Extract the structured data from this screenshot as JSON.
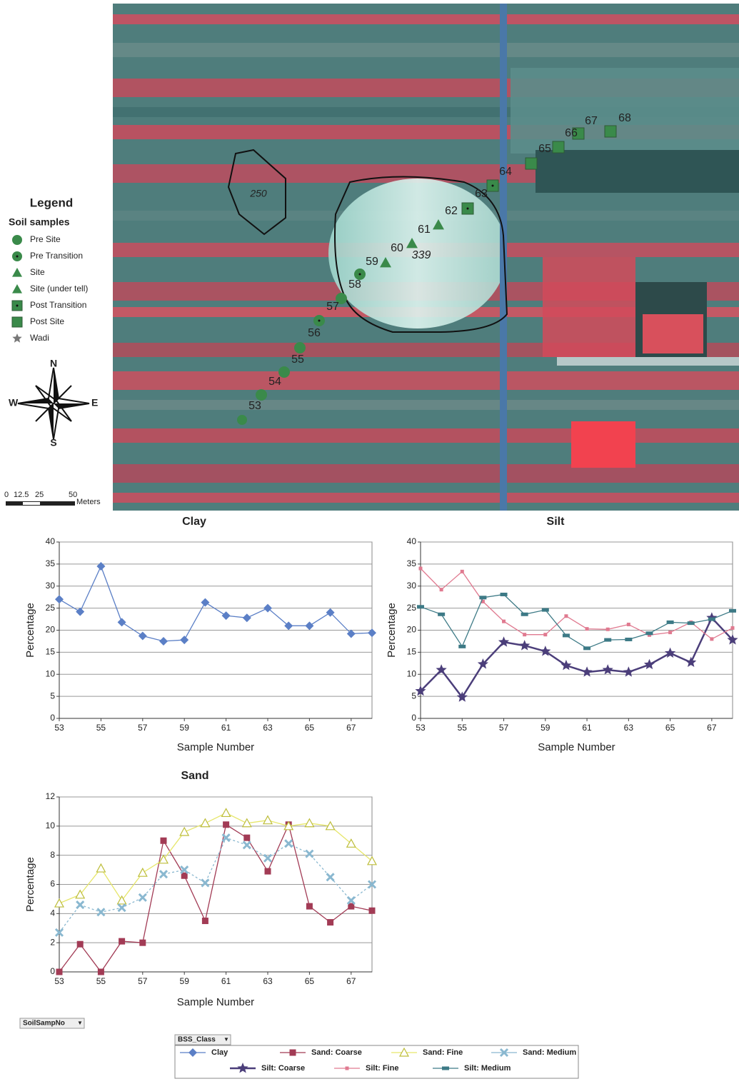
{
  "map": {
    "legend_title": "Legend",
    "legend_subtitle": "Soil samples",
    "legend_items": [
      "Pre Site",
      "Pre Transition",
      "Site",
      "Site (under tell)",
      "Post Transition",
      "Post Site",
      "Wadi"
    ],
    "compass": {
      "n": "N",
      "e": "E",
      "s": "S",
      "w": "W"
    },
    "scale_labels": [
      "0",
      "12.5",
      "25",
      "50"
    ],
    "scale_unit": "Meters",
    "areas": [
      "250",
      "339"
    ],
    "samples": [
      "53",
      "54",
      "55",
      "56",
      "57",
      "58",
      "59",
      "60",
      "61",
      "62",
      "63",
      "64",
      "65",
      "66",
      "67",
      "68"
    ]
  },
  "chart_data": [
    {
      "type": "line",
      "title": "Clay",
      "xlabel": "Sample Number",
      "ylabel": "Percentage",
      "x": [
        53,
        54,
        55,
        56,
        57,
        58,
        59,
        60,
        61,
        62,
        63,
        64,
        65,
        66,
        67,
        68
      ],
      "xlim": [
        53,
        68
      ],
      "xticks": [
        53,
        55,
        57,
        59,
        61,
        63,
        65,
        67
      ],
      "ylim": [
        0,
        40
      ],
      "yticks": [
        0,
        5,
        10,
        15,
        20,
        25,
        30,
        35,
        40
      ],
      "grid": true,
      "series": [
        {
          "name": "Clay",
          "color": "#5b7fc6",
          "marker": "diamond",
          "values": [
            27,
            24.2,
            34.5,
            21.8,
            18.7,
            17.5,
            17.8,
            26.3,
            23.3,
            22.8,
            25,
            21,
            21,
            24,
            19.2,
            19.4
          ]
        }
      ]
    },
    {
      "type": "line",
      "title": "Silt",
      "xlabel": "Sample Number",
      "ylabel": "Percentage",
      "x": [
        53,
        54,
        55,
        56,
        57,
        58,
        59,
        60,
        61,
        62,
        63,
        64,
        65,
        66,
        67,
        68
      ],
      "xlim": [
        53,
        68
      ],
      "xticks": [
        53,
        55,
        57,
        59,
        61,
        63,
        65,
        67
      ],
      "ylim": [
        0,
        40
      ],
      "yticks": [
        0,
        5,
        10,
        15,
        20,
        25,
        30,
        35,
        40
      ],
      "grid": true,
      "series": [
        {
          "name": "Silt: Coarse",
          "color": "#4b3e7a",
          "marker": "star",
          "values": [
            6.2,
            11,
            4.8,
            12.3,
            17.3,
            16.5,
            15.2,
            12,
            10.5,
            11,
            10.5,
            12.2,
            14.8,
            12.7,
            22.8,
            17.8
          ]
        },
        {
          "name": "Silt: Fine",
          "color": "#e07a90",
          "marker": "dot",
          "values": [
            34,
            29.2,
            33.3,
            26.5,
            22,
            19,
            19,
            23.2,
            20.3,
            20.2,
            21.3,
            18.9,
            19.5,
            21.8,
            18,
            20.5
          ]
        },
        {
          "name": "Silt: Medium",
          "color": "#3d7a86",
          "marker": "bar",
          "values": [
            25.3,
            23.6,
            16.3,
            27.4,
            28.1,
            23.6,
            24.6,
            18.8,
            15.9,
            17.8,
            17.9,
            19.3,
            21.8,
            21.6,
            22.5,
            24.4
          ]
        }
      ]
    },
    {
      "type": "line",
      "title": "Sand",
      "xlabel": "Sample Number",
      "ylabel": "Percentage",
      "x": [
        53,
        54,
        55,
        56,
        57,
        58,
        59,
        60,
        61,
        62,
        63,
        64,
        65,
        66,
        67,
        68
      ],
      "xlim": [
        53,
        68
      ],
      "xticks": [
        53,
        55,
        57,
        59,
        61,
        63,
        65,
        67
      ],
      "ylim": [
        0,
        12
      ],
      "yticks": [
        0,
        2,
        4,
        6,
        8,
        10,
        12
      ],
      "grid": true,
      "series": [
        {
          "name": "Sand: Coarse",
          "color": "#a23b55",
          "marker": "square",
          "values": [
            0,
            1.9,
            0,
            2.1,
            2,
            9,
            6.6,
            3.5,
            10.1,
            9.2,
            6.9,
            10.1,
            4.5,
            3.4,
            4.5,
            4.2
          ]
        },
        {
          "name": "Sand: Fine",
          "color": "#e6e66a",
          "marker": "triangle",
          "values": [
            4.7,
            5.3,
            7.1,
            4.9,
            6.8,
            7.7,
            9.6,
            10.2,
            10.9,
            10.2,
            10.4,
            10,
            10.2,
            10,
            8.8,
            7.6
          ]
        },
        {
          "name": "Sand: Medium",
          "color": "#8ab8d0",
          "marker": "cross",
          "values": [
            2.7,
            4.6,
            4.1,
            4.4,
            5.1,
            6.7,
            7,
            6.1,
            9.2,
            8.7,
            7.8,
            8.8,
            8.1,
            6.5,
            4.9,
            6
          ]
        }
      ]
    }
  ],
  "pivot": {
    "field_button": "SoilSampNo",
    "legend_button": "BSS_Class"
  }
}
